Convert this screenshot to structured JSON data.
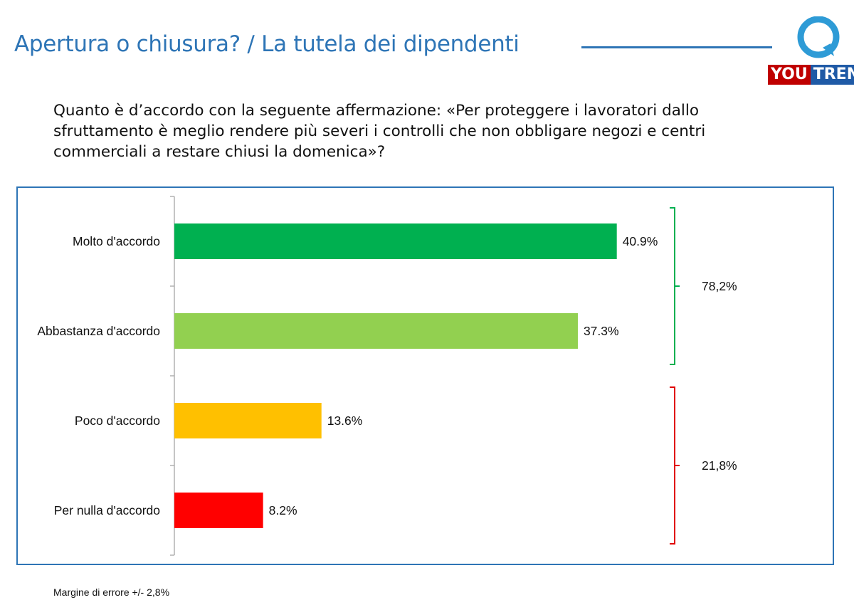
{
  "header": {
    "title": "Apertura o chiusura? / La tutela dei dipendenti",
    "accent_color": "#2e75b6"
  },
  "logo": {
    "part1": "YOU",
    "part2": "TREND",
    "icon": "speech-bubble-q-icon",
    "colors": {
      "you": "#c00000",
      "trend": "#1f5aa6",
      "bubble": "#2e9bd6"
    }
  },
  "question": "Quanto è d’accordo con la seguente affermazione: «Per proteggere i lavoratori dallo sfruttamento è meglio rendere più severi i controlli che non obbligare negozi e centri commerciali a restare chiusi la domenica»?",
  "chart_data": {
    "type": "bar",
    "orientation": "horizontal",
    "categories": [
      "Molto d'accordo",
      "Abbastanza d'accordo",
      "Poco d'accordo",
      "Per nulla d'accordo"
    ],
    "values": [
      40.9,
      37.3,
      13.6,
      8.2
    ],
    "value_labels": [
      "40.9%",
      "37.3%",
      "13.6%",
      "8.2%"
    ],
    "colors": [
      "#00b050",
      "#92d050",
      "#ffc000",
      "#ff0000"
    ],
    "xlim": [
      0,
      60
    ],
    "grid": false,
    "groups": [
      {
        "label": "78,2%",
        "from": 0,
        "to": 1,
        "color": "#00b050"
      },
      {
        "label": "21,8%",
        "from": 2,
        "to": 3,
        "color": "#e00000"
      }
    ]
  },
  "footnote": "Margine di errore +/- 2,8%"
}
